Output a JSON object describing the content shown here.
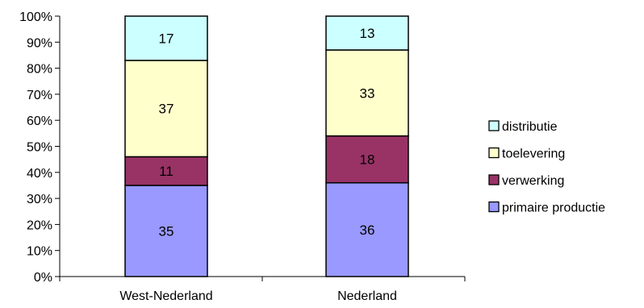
{
  "chart_data": {
    "type": "bar",
    "stacked": true,
    "normalized": true,
    "categories": [
      "West-Nederland",
      "Nederland"
    ],
    "series": [
      {
        "name": "primaire productie",
        "values": [
          35,
          36
        ],
        "color": "#9999ff"
      },
      {
        "name": "verwerking",
        "values": [
          11,
          18
        ],
        "color": "#993366"
      },
      {
        "name": "toelevering",
        "values": [
          37,
          33
        ],
        "color": "#ffffcc"
      },
      {
        "name": "distributie",
        "values": [
          17,
          13
        ],
        "color": "#ccffff"
      }
    ],
    "y_ticks": [
      "0%",
      "10%",
      "20%",
      "30%",
      "40%",
      "50%",
      "60%",
      "70%",
      "80%",
      "90%",
      "100%"
    ],
    "ylim": [
      0,
      100
    ],
    "grid": false,
    "legend_position": "right",
    "legend_order": [
      "distributie",
      "toelevering",
      "verwerking",
      "primaire productie"
    ]
  }
}
